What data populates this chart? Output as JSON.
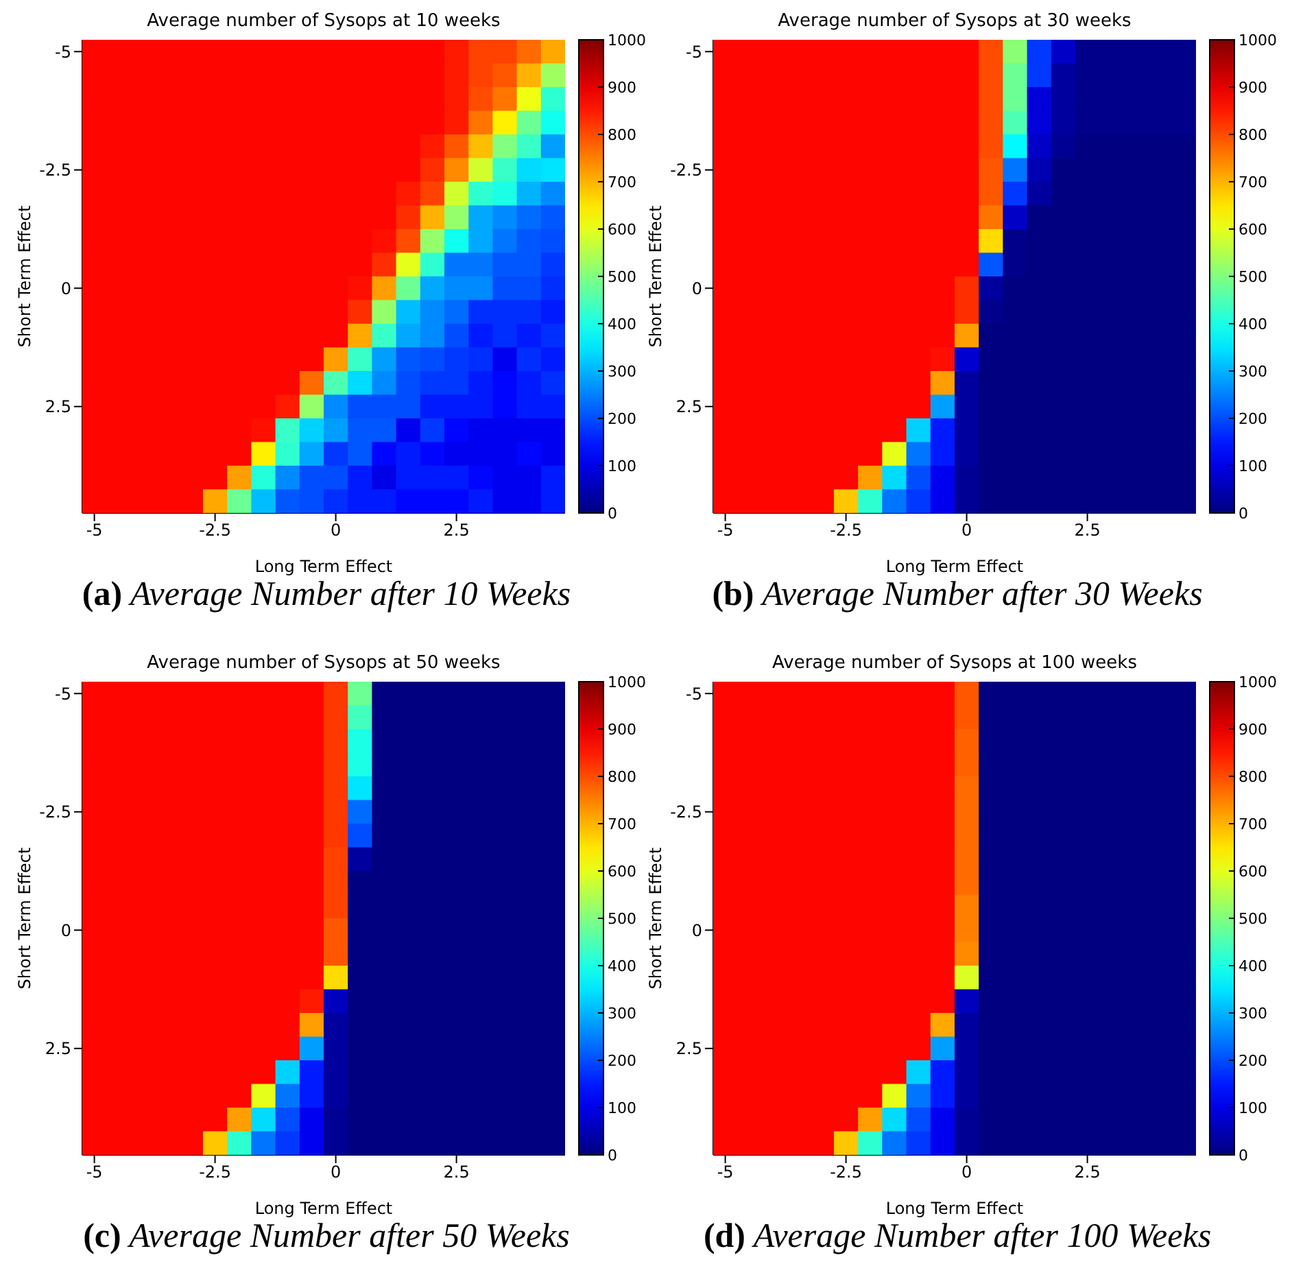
{
  "chart_data": [
    {
      "type": "heatmap",
      "title": "Average number of Sysops at 10 weeks",
      "xlabel": "Long Term Effect",
      "ylabel": "Short Term Effect",
      "annotations": [
        "(a) Average Number after 10 Weeks"
      ],
      "categories": [
        "-5",
        null,
        null,
        null,
        null,
        "-2.5",
        null,
        null,
        null,
        null,
        "0",
        null,
        null,
        null,
        null,
        "2.5",
        null,
        null,
        null,
        null
      ],
      "y_categories": [
        "-5",
        null,
        null,
        null,
        null,
        "-2.5",
        null,
        null,
        null,
        null,
        "0",
        null,
        null,
        null,
        null,
        "2.5",
        null,
        null,
        null,
        null
      ],
      "clim": [
        0,
        1000
      ],
      "cticks": [
        0,
        100,
        200,
        300,
        400,
        500,
        600,
        700,
        800,
        900,
        1000
      ],
      "cells": [
        [
          870,
          870,
          870,
          870,
          870,
          870,
          870,
          870,
          870,
          870,
          870,
          870,
          870,
          870,
          870,
          850,
          810,
          810,
          770,
          710
        ],
        [
          870,
          870,
          870,
          870,
          870,
          870,
          870,
          870,
          870,
          870,
          870,
          870,
          870,
          870,
          870,
          850,
          810,
          790,
          700,
          530
        ],
        [
          870,
          870,
          870,
          870,
          870,
          870,
          870,
          870,
          870,
          870,
          870,
          870,
          870,
          870,
          870,
          850,
          800,
          760,
          610,
          420
        ],
        [
          870,
          870,
          870,
          870,
          870,
          870,
          870,
          870,
          870,
          870,
          870,
          870,
          870,
          870,
          870,
          850,
          760,
          640,
          480,
          390
        ],
        [
          870,
          870,
          870,
          870,
          870,
          870,
          870,
          870,
          870,
          870,
          870,
          870,
          870,
          870,
          850,
          790,
          690,
          500,
          430,
          280
        ],
        [
          870,
          870,
          870,
          870,
          870,
          870,
          870,
          870,
          870,
          870,
          870,
          870,
          870,
          870,
          830,
          740,
          580,
          430,
          340,
          350
        ],
        [
          870,
          870,
          870,
          870,
          870,
          870,
          870,
          870,
          870,
          870,
          870,
          870,
          870,
          850,
          810,
          580,
          420,
          400,
          300,
          260
        ],
        [
          870,
          870,
          870,
          870,
          870,
          870,
          870,
          870,
          870,
          870,
          870,
          870,
          870,
          830,
          700,
          520,
          290,
          260,
          230,
          210
        ],
        [
          870,
          870,
          870,
          870,
          870,
          870,
          870,
          870,
          870,
          870,
          870,
          870,
          860,
          800,
          520,
          390,
          290,
          240,
          210,
          200
        ],
        [
          870,
          870,
          870,
          870,
          870,
          870,
          870,
          870,
          870,
          870,
          870,
          870,
          830,
          600,
          420,
          240,
          240,
          210,
          210,
          180
        ],
        [
          870,
          870,
          870,
          870,
          870,
          870,
          870,
          870,
          870,
          870,
          870,
          860,
          720,
          480,
          290,
          260,
          260,
          200,
          200,
          170
        ],
        [
          870,
          870,
          870,
          870,
          870,
          870,
          870,
          870,
          870,
          870,
          870,
          830,
          520,
          310,
          260,
          230,
          170,
          170,
          170,
          150
        ],
        [
          870,
          870,
          870,
          870,
          870,
          870,
          870,
          870,
          870,
          870,
          870,
          710,
          430,
          290,
          260,
          200,
          150,
          170,
          150,
          170
        ],
        [
          870,
          870,
          870,
          870,
          870,
          870,
          870,
          870,
          870,
          870,
          720,
          430,
          280,
          210,
          200,
          180,
          170,
          110,
          170,
          150
        ],
        [
          870,
          870,
          870,
          870,
          870,
          870,
          870,
          870,
          870,
          770,
          450,
          340,
          260,
          200,
          180,
          180,
          150,
          130,
          150,
          170
        ],
        [
          870,
          870,
          870,
          870,
          870,
          870,
          870,
          870,
          850,
          520,
          260,
          200,
          200,
          200,
          150,
          150,
          150,
          130,
          150,
          150
        ],
        [
          870,
          870,
          870,
          870,
          870,
          870,
          870,
          860,
          430,
          330,
          280,
          210,
          210,
          110,
          180,
          130,
          110,
          110,
          110,
          110
        ],
        [
          870,
          870,
          870,
          870,
          870,
          870,
          870,
          640,
          420,
          290,
          180,
          210,
          130,
          150,
          130,
          110,
          110,
          110,
          130,
          110
        ],
        [
          870,
          870,
          870,
          870,
          870,
          870,
          720,
          410,
          260,
          200,
          200,
          150,
          100,
          150,
          150,
          150,
          130,
          110,
          110,
          150
        ],
        [
          870,
          870,
          870,
          870,
          870,
          710,
          480,
          310,
          210,
          200,
          170,
          150,
          150,
          130,
          130,
          130,
          150,
          110,
          110,
          150
        ]
      ]
    },
    {
      "type": "heatmap",
      "title": "Average number of Sysops at 30 weeks",
      "xlabel": "Long Term Effect",
      "ylabel": "Short Term Effect",
      "annotations": [
        "(b) Average Number after 30 Weeks"
      ],
      "categories": [
        "-5",
        null,
        null,
        null,
        null,
        "-2.5",
        null,
        null,
        null,
        null,
        "0",
        null,
        null,
        null,
        null,
        "2.5",
        null,
        null,
        null,
        null
      ],
      "y_categories": [
        "-5",
        null,
        null,
        null,
        null,
        "-2.5",
        null,
        null,
        null,
        null,
        "0",
        null,
        null,
        null,
        null,
        "2.5",
        null,
        null,
        null,
        null
      ],
      "clim": [
        0,
        1000
      ],
      "cticks": [
        0,
        100,
        200,
        300,
        400,
        500,
        600,
        700,
        800,
        900,
        1000
      ],
      "cells": [
        [
          870,
          870,
          870,
          870,
          870,
          870,
          870,
          870,
          870,
          870,
          870,
          800,
          510,
          180,
          70,
          10,
          10,
          10,
          10,
          10
        ],
        [
          870,
          870,
          870,
          870,
          870,
          870,
          870,
          870,
          870,
          870,
          870,
          800,
          480,
          180,
          30,
          10,
          10,
          10,
          10,
          10
        ],
        [
          870,
          870,
          870,
          870,
          870,
          870,
          870,
          870,
          870,
          870,
          870,
          800,
          480,
          90,
          30,
          10,
          10,
          10,
          10,
          10
        ],
        [
          870,
          870,
          870,
          870,
          870,
          870,
          870,
          870,
          870,
          870,
          870,
          800,
          450,
          90,
          30,
          10,
          10,
          10,
          10,
          10
        ],
        [
          870,
          870,
          870,
          870,
          870,
          870,
          870,
          870,
          870,
          870,
          870,
          800,
          370,
          70,
          20,
          0,
          0,
          0,
          0,
          0
        ],
        [
          870,
          870,
          870,
          870,
          870,
          870,
          870,
          870,
          870,
          870,
          870,
          790,
          240,
          50,
          0,
          0,
          0,
          0,
          0,
          0
        ],
        [
          870,
          870,
          870,
          870,
          870,
          870,
          870,
          870,
          870,
          870,
          870,
          790,
          180,
          30,
          0,
          0,
          0,
          0,
          0,
          0
        ],
        [
          870,
          870,
          870,
          870,
          870,
          870,
          870,
          870,
          870,
          870,
          870,
          760,
          70,
          0,
          0,
          0,
          0,
          0,
          0,
          0
        ],
        [
          870,
          870,
          870,
          870,
          870,
          870,
          870,
          870,
          870,
          870,
          870,
          660,
          10,
          0,
          0,
          0,
          0,
          0,
          0,
          0
        ],
        [
          870,
          870,
          870,
          870,
          870,
          870,
          870,
          870,
          870,
          870,
          870,
          210,
          10,
          0,
          0,
          0,
          0,
          0,
          0,
          0
        ],
        [
          870,
          870,
          870,
          870,
          870,
          870,
          870,
          870,
          870,
          870,
          830,
          30,
          0,
          0,
          0,
          0,
          0,
          0,
          0,
          0
        ],
        [
          870,
          870,
          870,
          870,
          870,
          870,
          870,
          870,
          870,
          870,
          830,
          10,
          0,
          0,
          0,
          0,
          0,
          0,
          0,
          0
        ],
        [
          870,
          870,
          870,
          870,
          870,
          870,
          870,
          870,
          870,
          870,
          720,
          0,
          0,
          0,
          0,
          0,
          0,
          0,
          0,
          0
        ],
        [
          870,
          870,
          870,
          870,
          870,
          870,
          870,
          870,
          870,
          860,
          80,
          0,
          0,
          0,
          0,
          0,
          0,
          0,
          0,
          0
        ],
        [
          870,
          870,
          870,
          870,
          870,
          870,
          870,
          870,
          870,
          720,
          30,
          0,
          0,
          0,
          0,
          0,
          0,
          0,
          0,
          0
        ],
        [
          870,
          870,
          870,
          870,
          870,
          870,
          870,
          870,
          870,
          280,
          30,
          0,
          0,
          0,
          0,
          0,
          0,
          0,
          0,
          0
        ],
        [
          870,
          870,
          870,
          870,
          870,
          870,
          870,
          870,
          330,
          150,
          30,
          0,
          0,
          0,
          0,
          0,
          0,
          0,
          0,
          0
        ],
        [
          870,
          870,
          870,
          870,
          870,
          870,
          870,
          600,
          240,
          150,
          30,
          0,
          0,
          0,
          0,
          0,
          0,
          0,
          0,
          0
        ],
        [
          870,
          870,
          870,
          870,
          870,
          870,
          720,
          340,
          200,
          110,
          20,
          0,
          0,
          0,
          0,
          0,
          0,
          0,
          0,
          0
        ],
        [
          870,
          870,
          870,
          870,
          870,
          680,
          420,
          240,
          180,
          110,
          20,
          0,
          0,
          0,
          0,
          0,
          0,
          0,
          0,
          0
        ]
      ]
    },
    {
      "type": "heatmap",
      "title": "Average number of Sysops at 50 weeks",
      "xlabel": "Long Term Effect",
      "ylabel": "Short Term Effect",
      "annotations": [
        "(c) Average Number after 50 Weeks"
      ],
      "categories": [
        "-5",
        null,
        null,
        null,
        null,
        "-2.5",
        null,
        null,
        null,
        null,
        "0",
        null,
        null,
        null,
        null,
        "2.5",
        null,
        null,
        null,
        null
      ],
      "y_categories": [
        "-5",
        null,
        null,
        null,
        null,
        "-2.5",
        null,
        null,
        null,
        null,
        "0",
        null,
        null,
        null,
        null,
        "2.5",
        null,
        null,
        null,
        null
      ],
      "clim": [
        0,
        1000
      ],
      "cticks": [
        0,
        100,
        200,
        300,
        400,
        500,
        600,
        700,
        800,
        900,
        1000
      ],
      "cells": [
        [
          870,
          870,
          870,
          870,
          870,
          870,
          870,
          870,
          870,
          870,
          820,
          480,
          0,
          0,
          0,
          0,
          0,
          0,
          0,
          0
        ],
        [
          870,
          870,
          870,
          870,
          870,
          870,
          870,
          870,
          870,
          870,
          820,
          440,
          0,
          0,
          0,
          0,
          0,
          0,
          0,
          0
        ],
        [
          870,
          870,
          870,
          870,
          870,
          870,
          870,
          870,
          870,
          870,
          820,
          400,
          0,
          0,
          0,
          0,
          0,
          0,
          0,
          0
        ],
        [
          870,
          870,
          870,
          870,
          870,
          870,
          870,
          870,
          870,
          870,
          820,
          400,
          0,
          0,
          0,
          0,
          0,
          0,
          0,
          0
        ],
        [
          870,
          870,
          870,
          870,
          870,
          870,
          870,
          870,
          870,
          870,
          820,
          350,
          0,
          0,
          0,
          0,
          0,
          0,
          0,
          0
        ],
        [
          870,
          870,
          870,
          870,
          870,
          870,
          870,
          870,
          870,
          870,
          820,
          230,
          0,
          0,
          0,
          0,
          0,
          0,
          0,
          0
        ],
        [
          870,
          870,
          870,
          870,
          870,
          870,
          870,
          870,
          870,
          870,
          820,
          200,
          0,
          0,
          0,
          0,
          0,
          0,
          0,
          0
        ],
        [
          870,
          870,
          870,
          870,
          870,
          870,
          870,
          870,
          870,
          870,
          810,
          30,
          0,
          0,
          0,
          0,
          0,
          0,
          0,
          0
        ],
        [
          870,
          870,
          870,
          870,
          870,
          870,
          870,
          870,
          870,
          870,
          810,
          0,
          0,
          0,
          0,
          0,
          0,
          0,
          0,
          0
        ],
        [
          870,
          870,
          870,
          870,
          870,
          870,
          870,
          870,
          870,
          870,
          810,
          0,
          0,
          0,
          0,
          0,
          0,
          0,
          0,
          0
        ],
        [
          870,
          870,
          870,
          870,
          870,
          870,
          870,
          870,
          870,
          870,
          790,
          0,
          0,
          0,
          0,
          0,
          0,
          0,
          0,
          0
        ],
        [
          870,
          870,
          870,
          870,
          870,
          870,
          870,
          870,
          870,
          870,
          790,
          0,
          0,
          0,
          0,
          0,
          0,
          0,
          0,
          0
        ],
        [
          870,
          870,
          870,
          870,
          870,
          870,
          870,
          870,
          870,
          870,
          660,
          0,
          0,
          0,
          0,
          0,
          0,
          0,
          0,
          0
        ],
        [
          870,
          870,
          870,
          870,
          870,
          870,
          870,
          870,
          870,
          850,
          60,
          0,
          0,
          0,
          0,
          0,
          0,
          0,
          0,
          0
        ],
        [
          870,
          870,
          870,
          870,
          870,
          870,
          870,
          870,
          870,
          720,
          30,
          0,
          0,
          0,
          0,
          0,
          0,
          0,
          0,
          0
        ],
        [
          870,
          870,
          870,
          870,
          870,
          870,
          870,
          870,
          870,
          280,
          30,
          0,
          0,
          0,
          0,
          0,
          0,
          0,
          0,
          0
        ],
        [
          870,
          870,
          870,
          870,
          870,
          870,
          870,
          870,
          330,
          150,
          30,
          0,
          0,
          0,
          0,
          0,
          0,
          0,
          0,
          0
        ],
        [
          870,
          870,
          870,
          870,
          870,
          870,
          870,
          600,
          240,
          150,
          30,
          0,
          0,
          0,
          0,
          0,
          0,
          0,
          0,
          0
        ],
        [
          870,
          870,
          870,
          870,
          870,
          870,
          720,
          340,
          200,
          110,
          20,
          0,
          0,
          0,
          0,
          0,
          0,
          0,
          0,
          0
        ],
        [
          870,
          870,
          870,
          870,
          870,
          680,
          420,
          240,
          180,
          110,
          20,
          0,
          0,
          0,
          0,
          0,
          0,
          0,
          0,
          0
        ]
      ]
    },
    {
      "type": "heatmap",
      "title": "Average number of Sysops at 100 weeks",
      "xlabel": "Long Term Effect",
      "ylabel": "Short Term Effect",
      "annotations": [
        "(d) Average Number after 100 Weeks"
      ],
      "categories": [
        "-5",
        null,
        null,
        null,
        null,
        "-2.5",
        null,
        null,
        null,
        null,
        "0",
        null,
        null,
        null,
        null,
        "2.5",
        null,
        null,
        null,
        null
      ],
      "y_categories": [
        "-5",
        null,
        null,
        null,
        null,
        "-2.5",
        null,
        null,
        null,
        null,
        "0",
        null,
        null,
        null,
        null,
        "2.5",
        null,
        null,
        null,
        null
      ],
      "clim": [
        0,
        1000
      ],
      "cticks": [
        0,
        100,
        200,
        300,
        400,
        500,
        600,
        700,
        800,
        900,
        1000
      ],
      "cells": [
        [
          870,
          870,
          870,
          870,
          870,
          870,
          870,
          870,
          870,
          870,
          790,
          0,
          0,
          0,
          0,
          0,
          0,
          0,
          0,
          0
        ],
        [
          870,
          870,
          870,
          870,
          870,
          870,
          870,
          870,
          870,
          870,
          790,
          0,
          0,
          0,
          0,
          0,
          0,
          0,
          0,
          0
        ],
        [
          870,
          870,
          870,
          870,
          870,
          870,
          870,
          870,
          870,
          870,
          780,
          0,
          0,
          0,
          0,
          0,
          0,
          0,
          0,
          0
        ],
        [
          870,
          870,
          870,
          870,
          870,
          870,
          870,
          870,
          870,
          870,
          780,
          0,
          0,
          0,
          0,
          0,
          0,
          0,
          0,
          0
        ],
        [
          870,
          870,
          870,
          870,
          870,
          870,
          870,
          870,
          870,
          870,
          770,
          0,
          0,
          0,
          0,
          0,
          0,
          0,
          0,
          0
        ],
        [
          870,
          870,
          870,
          870,
          870,
          870,
          870,
          870,
          870,
          870,
          770,
          0,
          0,
          0,
          0,
          0,
          0,
          0,
          0,
          0
        ],
        [
          870,
          870,
          870,
          870,
          870,
          870,
          870,
          870,
          870,
          870,
          770,
          0,
          0,
          0,
          0,
          0,
          0,
          0,
          0,
          0
        ],
        [
          870,
          870,
          870,
          870,
          870,
          870,
          870,
          870,
          870,
          870,
          770,
          0,
          0,
          0,
          0,
          0,
          0,
          0,
          0,
          0
        ],
        [
          870,
          870,
          870,
          870,
          870,
          870,
          870,
          870,
          870,
          870,
          770,
          0,
          0,
          0,
          0,
          0,
          0,
          0,
          0,
          0
        ],
        [
          870,
          870,
          870,
          870,
          870,
          870,
          870,
          870,
          870,
          870,
          750,
          0,
          0,
          0,
          0,
          0,
          0,
          0,
          0,
          0
        ],
        [
          870,
          870,
          870,
          870,
          870,
          870,
          870,
          870,
          870,
          870,
          750,
          0,
          0,
          0,
          0,
          0,
          0,
          0,
          0,
          0
        ],
        [
          870,
          870,
          870,
          870,
          870,
          870,
          870,
          870,
          870,
          870,
          740,
          0,
          0,
          0,
          0,
          0,
          0,
          0,
          0,
          0
        ],
        [
          870,
          870,
          870,
          870,
          870,
          870,
          870,
          870,
          870,
          870,
          590,
          0,
          0,
          0,
          0,
          0,
          0,
          0,
          0,
          0
        ],
        [
          870,
          870,
          870,
          870,
          870,
          870,
          870,
          870,
          870,
          870,
          60,
          0,
          0,
          0,
          0,
          0,
          0,
          0,
          0,
          0
        ],
        [
          870,
          870,
          870,
          870,
          870,
          870,
          870,
          870,
          870,
          710,
          30,
          0,
          0,
          0,
          0,
          0,
          0,
          0,
          0,
          0
        ],
        [
          870,
          870,
          870,
          870,
          870,
          870,
          870,
          870,
          870,
          280,
          30,
          0,
          0,
          0,
          0,
          0,
          0,
          0,
          0,
          0
        ],
        [
          870,
          870,
          870,
          870,
          870,
          870,
          870,
          870,
          330,
          150,
          30,
          0,
          0,
          0,
          0,
          0,
          0,
          0,
          0,
          0
        ],
        [
          870,
          870,
          870,
          870,
          870,
          870,
          870,
          600,
          240,
          150,
          30,
          0,
          0,
          0,
          0,
          0,
          0,
          0,
          0,
          0
        ],
        [
          870,
          870,
          870,
          870,
          870,
          870,
          720,
          340,
          200,
          110,
          20,
          0,
          0,
          0,
          0,
          0,
          0,
          0,
          0,
          0
        ],
        [
          870,
          870,
          870,
          870,
          870,
          680,
          420,
          240,
          180,
          110,
          20,
          0,
          0,
          0,
          0,
          0,
          0,
          0,
          0,
          0
        ]
      ]
    }
  ]
}
